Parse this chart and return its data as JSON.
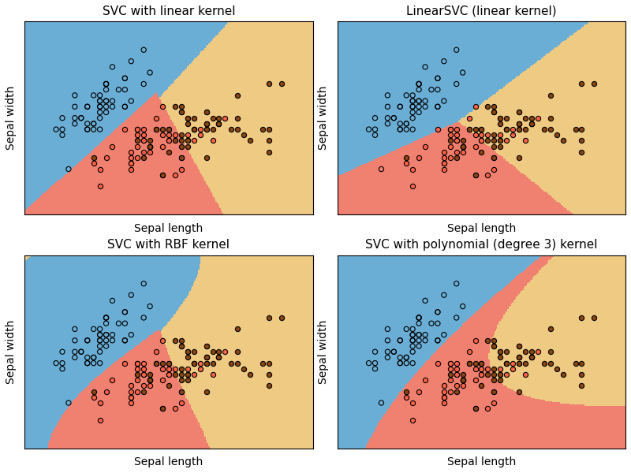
{
  "titles": [
    "SVC with linear kernel",
    "LinearSVC (linear kernel)",
    "SVC with RBF kernel",
    "SVC with polynomial (degree 3) kernel"
  ],
  "xlabel": "Sepal length",
  "ylabel": "Sepal width",
  "figsize": [
    8.0,
    6.0
  ],
  "dpi": 100,
  "class_colors": [
    "#6aaed6",
    "#f08070",
    "#eeca82"
  ],
  "scatter_facecolors": [
    "none",
    "#FF6347",
    "#8B4513"
  ],
  "scatter_edgecolors": [
    "black",
    "black",
    "black"
  ],
  "bg_color": "#ffffff",
  "title_fontsize": 11,
  "label_fontsize": 10
}
